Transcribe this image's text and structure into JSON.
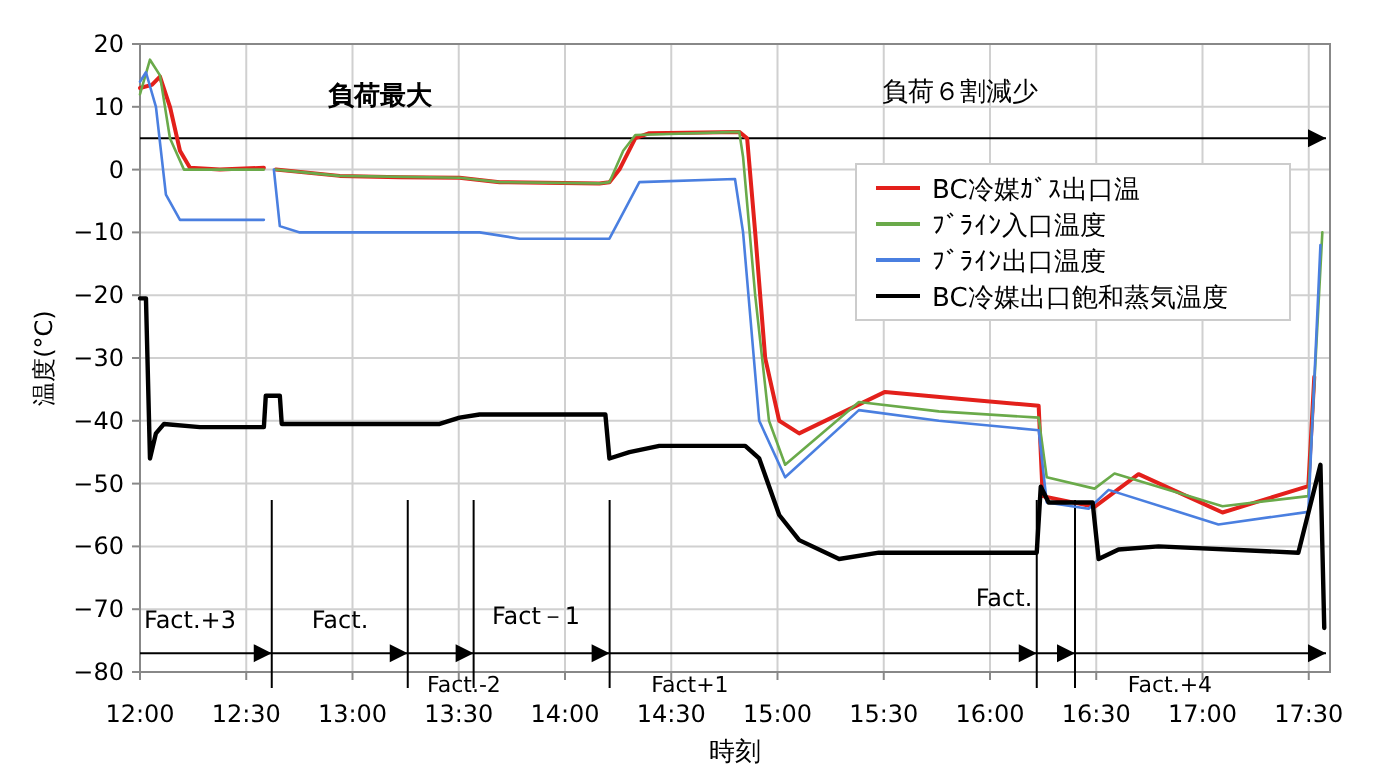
{
  "chart_data": {
    "type": "line",
    "xlabel": "時刻",
    "ylabel": "温度(°C)",
    "xlim": [
      12,
      17.6
    ],
    "ylim": [
      -80,
      20
    ],
    "xticks": [
      {
        "value": 12,
        "label": "12:00"
      },
      {
        "value": 12.5,
        "label": "12:30"
      },
      {
        "value": 13,
        "label": "13:00"
      },
      {
        "value": 13.5,
        "label": "13:30"
      },
      {
        "value": 14,
        "label": "14:00"
      },
      {
        "value": 14.5,
        "label": "14:30"
      },
      {
        "value": 15,
        "label": "15:00"
      },
      {
        "value": 15.5,
        "label": "15:30"
      },
      {
        "value": 16,
        "label": "16:00"
      },
      {
        "value": 16.5,
        "label": "16:30"
      },
      {
        "value": 17,
        "label": "17:00"
      },
      {
        "value": 17.5,
        "label": "17:30"
      }
    ],
    "yticks": [
      {
        "value": -80,
        "label": "−80"
      },
      {
        "value": -70,
        "label": "−70"
      },
      {
        "value": -60,
        "label": "−60"
      },
      {
        "value": -50,
        "label": "−50"
      },
      {
        "value": -40,
        "label": "−40"
      },
      {
        "value": -30,
        "label": "−30"
      },
      {
        "value": -20,
        "label": "−20"
      },
      {
        "value": -10,
        "label": "−10"
      },
      0,
      10,
      20
    ],
    "grid": true,
    "legend": "top right",
    "series": [
      {
        "name": "BC冷媒ｶﾞｽ出口温",
        "color": "#e3201b",
        "x": [
          12.0,
          12.056,
          12.094,
          12.141,
          12.188,
          12.235,
          12.376,
          12.583,
          12.6,
          12.639,
          12.94,
          13.222,
          13.504,
          13.692,
          14.162,
          14.209,
          14.256,
          14.331,
          14.397,
          14.82,
          14.857,
          14.895,
          14.942,
          15.008,
          15.102,
          15.506,
          15.853,
          16.229,
          16.248,
          16.492,
          16.699,
          17.094,
          17.498,
          17.526
        ],
        "values": [
          13,
          13.5,
          14.8,
          10,
          3,
          0.3,
          0,
          0.3,
          null,
          0,
          -1,
          -1.2,
          -1.3,
          -2,
          -2.2,
          -2,
          0,
          5,
          5.8,
          6,
          5,
          -10,
          -30,
          -40,
          -42,
          -35.4,
          -36.5,
          -37.6,
          -52,
          -53.7,
          -48.5,
          -54.6,
          -50.4,
          -33
        ]
      },
      {
        "name": "ﾌﾞﾗｲﾝ入口温度",
        "color": "#6aaa4a",
        "x": [
          12.0,
          12.047,
          12.094,
          12.141,
          12.207,
          12.583,
          12.6,
          12.639,
          12.94,
          13.504,
          13.692,
          14.162,
          14.209,
          14.274,
          14.331,
          14.82,
          14.838,
          14.895,
          14.96,
          15.036,
          15.383,
          15.759,
          16.229,
          16.267,
          16.492,
          16.586,
          17.094,
          17.498,
          17.564
        ],
        "values": [
          12,
          17.5,
          15,
          5,
          0,
          0,
          null,
          0,
          -1,
          -1.3,
          -2,
          -2.2,
          -2,
          3,
          5.5,
          6,
          2,
          -20,
          -40,
          -47,
          -37,
          -38.5,
          -39.5,
          -49,
          -50.8,
          -48.4,
          -53.6,
          -52,
          -10
        ]
      },
      {
        "name": "ﾌﾞﾗｲﾝ出口温度",
        "color": "#4a7fe0",
        "x": [
          12.0,
          12.028,
          12.075,
          12.122,
          12.188,
          12.583,
          12.6,
          12.63,
          12.658,
          12.752,
          13.598,
          13.786,
          14.209,
          14.256,
          14.35,
          14.8,
          14.838,
          14.914,
          15.036,
          15.383,
          15.759,
          16.229,
          16.267,
          16.464,
          16.558,
          17.075,
          17.498,
          17.555
        ],
        "values": [
          14,
          15.5,
          10,
          -4,
          -8,
          -8,
          null,
          0,
          -9,
          -10,
          -10,
          -11,
          -11,
          -8,
          -2,
          -1.5,
          -10,
          -40,
          -49,
          -38.3,
          -40,
          -41.5,
          -53,
          -54,
          -51,
          -56.5,
          -54.5,
          -12
        ]
      },
      {
        "name": "BC冷媒出口飽和蒸気温度",
        "color": "#000000",
        "x": [
          12.0,
          12.028,
          12.047,
          12.075,
          12.113,
          12.282,
          12.583,
          12.592,
          12.658,
          12.667,
          13.41,
          13.504,
          13.598,
          14.19,
          14.209,
          14.303,
          14.444,
          14.848,
          14.914,
          15.008,
          15.102,
          15.29,
          15.477,
          16.22,
          16.239,
          16.276,
          16.483,
          16.511,
          16.605,
          16.793,
          17.451,
          17.555,
          17.573
        ],
        "values": [
          -20.5,
          -20.5,
          -46,
          -42,
          -40.5,
          -41,
          -41,
          -36,
          -36,
          -40.5,
          -40.5,
          -39.5,
          -39,
          -39,
          -46,
          -45,
          -44,
          -44,
          -46,
          -55,
          -59,
          -62,
          -61,
          -61,
          -50.5,
          -53,
          -53,
          -62,
          -60.5,
          -60,
          -61,
          -47,
          -73
        ]
      }
    ],
    "ref_lines": [
      {
        "axis": "y",
        "value": 5,
        "color": "#000000"
      },
      {
        "axis": "y",
        "value": -77,
        "color": "#000000"
      },
      {
        "axis": "x",
        "value": 12.62,
        "color": "#000000"
      },
      {
        "axis": "x",
        "value": 13.26,
        "color": "#000000"
      },
      {
        "axis": "x",
        "value": 13.57,
        "color": "#000000"
      },
      {
        "axis": "x",
        "value": 14.21,
        "color": "#000000"
      },
      {
        "axis": "x",
        "value": 16.22,
        "color": "#000000"
      },
      {
        "axis": "x",
        "value": 16.4,
        "color": "#000000"
      }
    ],
    "annotations": [
      "負荷最大",
      "負荷６割減少",
      "Fact.+3",
      "Fact.",
      "Fact.-2",
      "Fact－1",
      "Fact+1",
      "Fact.",
      "Fact.+4"
    ]
  }
}
